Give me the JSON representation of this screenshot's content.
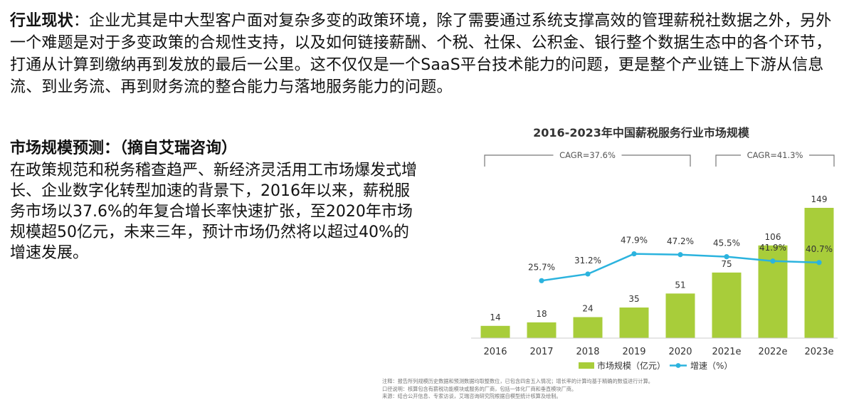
{
  "industry": {
    "label": "行业现状",
    "colon": "：",
    "body": "企业尤其是中大型客户面对复杂多变的政策环境，除了需要通过系统支撑高效的管理薪税社数据之外，另外一个难题是对于多变政策的合规性支持，以及如何链接薪酬、个税、社保、公积金、银行整个数据生态中的各个环节，打通从计算到缴纳再到发放的最后一公里。这不仅仅是一个SaaS平台技术能力的问题，更是整个产业链上下游从信息流、到业务流、再到财务流的整合能力与落地服务能力的问题。"
  },
  "forecast": {
    "heading": "市场规模预测：（摘自艾瑞咨询）",
    "body": "在政策规范和税务稽查趋严、新经济灵活用工市场爆发式增长、企业数字化转型加速的背景下，2016年以来，薪税服务市场以37.6%的年复合增长率快速扩张，至2020年市场规模超50亿元，未来三年，预计市场仍然将以超过40%的增速发展。"
  },
  "colors": {
    "bar": "#a8cd3a",
    "line": "#2bb3de",
    "bracket": "#777777"
  },
  "chart_data": {
    "type": "bar",
    "title": "2016-2023年中国薪税服务行业市场规模",
    "categories": [
      "2016",
      "2017",
      "2018",
      "2019",
      "2020",
      "2021e",
      "2022e",
      "2023e"
    ],
    "series": [
      {
        "name": "市场规模（亿元）",
        "type": "bar",
        "values": [
          14,
          18,
          24,
          35,
          51,
          75,
          106,
          149
        ]
      },
      {
        "name": "增速（%）",
        "type": "line",
        "values": [
          null,
          25.7,
          31.2,
          47.9,
          47.2,
          45.5,
          41.9,
          40.7
        ]
      }
    ],
    "bar_labels": [
      "14",
      "18",
      "24",
      "35",
      "51",
      "75",
      "106",
      "149"
    ],
    "line_labels": [
      "",
      "25.7%",
      "31.2%",
      "47.9%",
      "47.2%",
      "45.5%",
      "41.9%",
      "40.7%"
    ],
    "annotations": [
      {
        "text": "CAGR=37.6%",
        "from": "2016",
        "to": "2020"
      },
      {
        "text": "CAGR=41.3%",
        "from": "2021e",
        "to": "2023e"
      }
    ],
    "legend": [
      "市场规模（亿元）",
      "增速（%）"
    ],
    "legend_position": "bottom",
    "grid": false
  },
  "notes": [
    "注释：报告所列规模历史数据和预测数据均取整数位，已包含四舍五入情况；增长率的计算均基于精确的数值进行计算。",
    "口径说明：核算包含有薪税功能模块或服务的厂商，包括一体化厂商和垂直模块厂商。",
    "来源：结合公开信息、专家访谈，艾瑞咨询研究院根据自模型统计核算及绘制。"
  ]
}
